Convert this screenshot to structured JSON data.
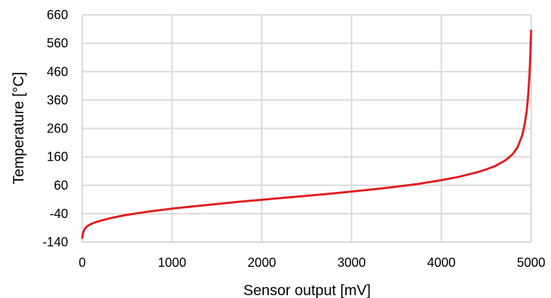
{
  "chart_data": {
    "type": "line",
    "title": "",
    "xlabel": "Sensor output [mV]",
    "ylabel": "Temperature [°C]",
    "xlim": [
      0,
      5000
    ],
    "ylim": [
      -140,
      660
    ],
    "x_ticks": [
      0,
      1000,
      2000,
      3000,
      4000,
      5000
    ],
    "y_ticks": [
      -140,
      -40,
      60,
      160,
      260,
      360,
      460,
      560,
      660
    ],
    "grid": true,
    "legend": "none",
    "series": [
      {
        "color": "#e31a1c",
        "x": [
          0,
          5,
          15,
          30,
          60,
          100,
          150,
          200,
          300,
          400,
          500,
          750,
          1000,
          1250,
          1500,
          1750,
          2000,
          2250,
          2500,
          2750,
          3000,
          3250,
          3500,
          3750,
          4000,
          4200,
          4400,
          4500,
          4600,
          4700,
          4750,
          4800,
          4850,
          4900,
          4925,
          4950,
          4960,
          4970,
          4980,
          4990,
          4995,
          5000
        ],
        "y": [
          -125,
          -112,
          -102,
          -93,
          -83,
          -76,
          -70,
          -65,
          -57,
          -50,
          -44,
          -32,
          -22,
          -14,
          -6,
          2,
          9,
          16,
          23,
          30,
          38,
          46,
          55,
          65,
          78,
          90,
          106,
          116,
          128,
          145,
          157,
          172,
          195,
          235,
          270,
          320,
          350,
          390,
          440,
          510,
          560,
          605
        ]
      }
    ]
  }
}
